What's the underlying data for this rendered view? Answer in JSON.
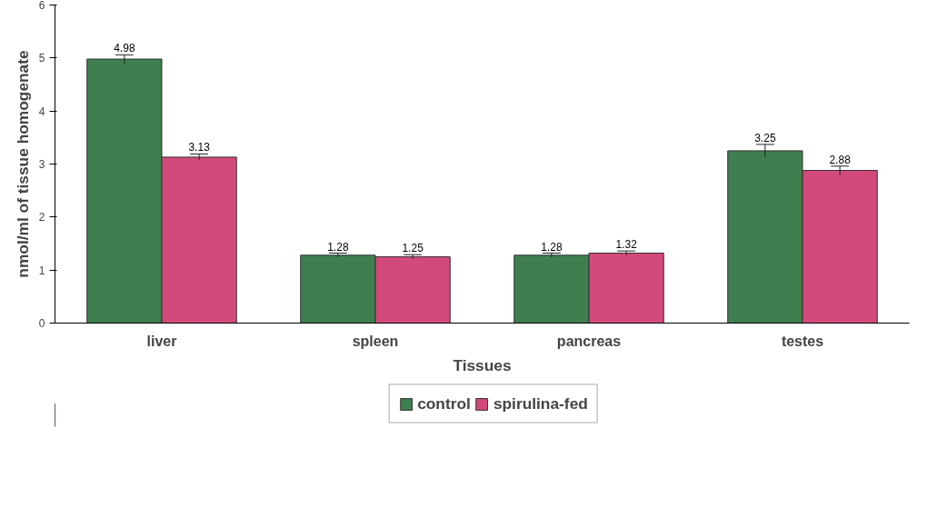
{
  "chart_data": {
    "type": "bar",
    "xlabel": "Tissues",
    "ylabel": "nmol/ml of tissue homogenate",
    "categories": [
      "liver",
      "spleen",
      "pancreas",
      "testes"
    ],
    "series": [
      {
        "name": "control",
        "color": "#3f7f4f",
        "values": [
          4.98,
          1.28,
          1.28,
          3.25
        ],
        "errors": [
          0.08,
          0.04,
          0.04,
          0.12
        ]
      },
      {
        "name": "spirulina-fed",
        "color": "#d2497c",
        "values": [
          3.13,
          1.25,
          1.32,
          2.88
        ],
        "errors": [
          0.06,
          0.04,
          0.04,
          0.08
        ]
      }
    ],
    "ylim": [
      0,
      6
    ],
    "yticks": [
      0,
      1,
      2,
      3,
      4,
      5,
      6
    ],
    "grid": false,
    "legend": "bottom",
    "data_labels": true
  }
}
